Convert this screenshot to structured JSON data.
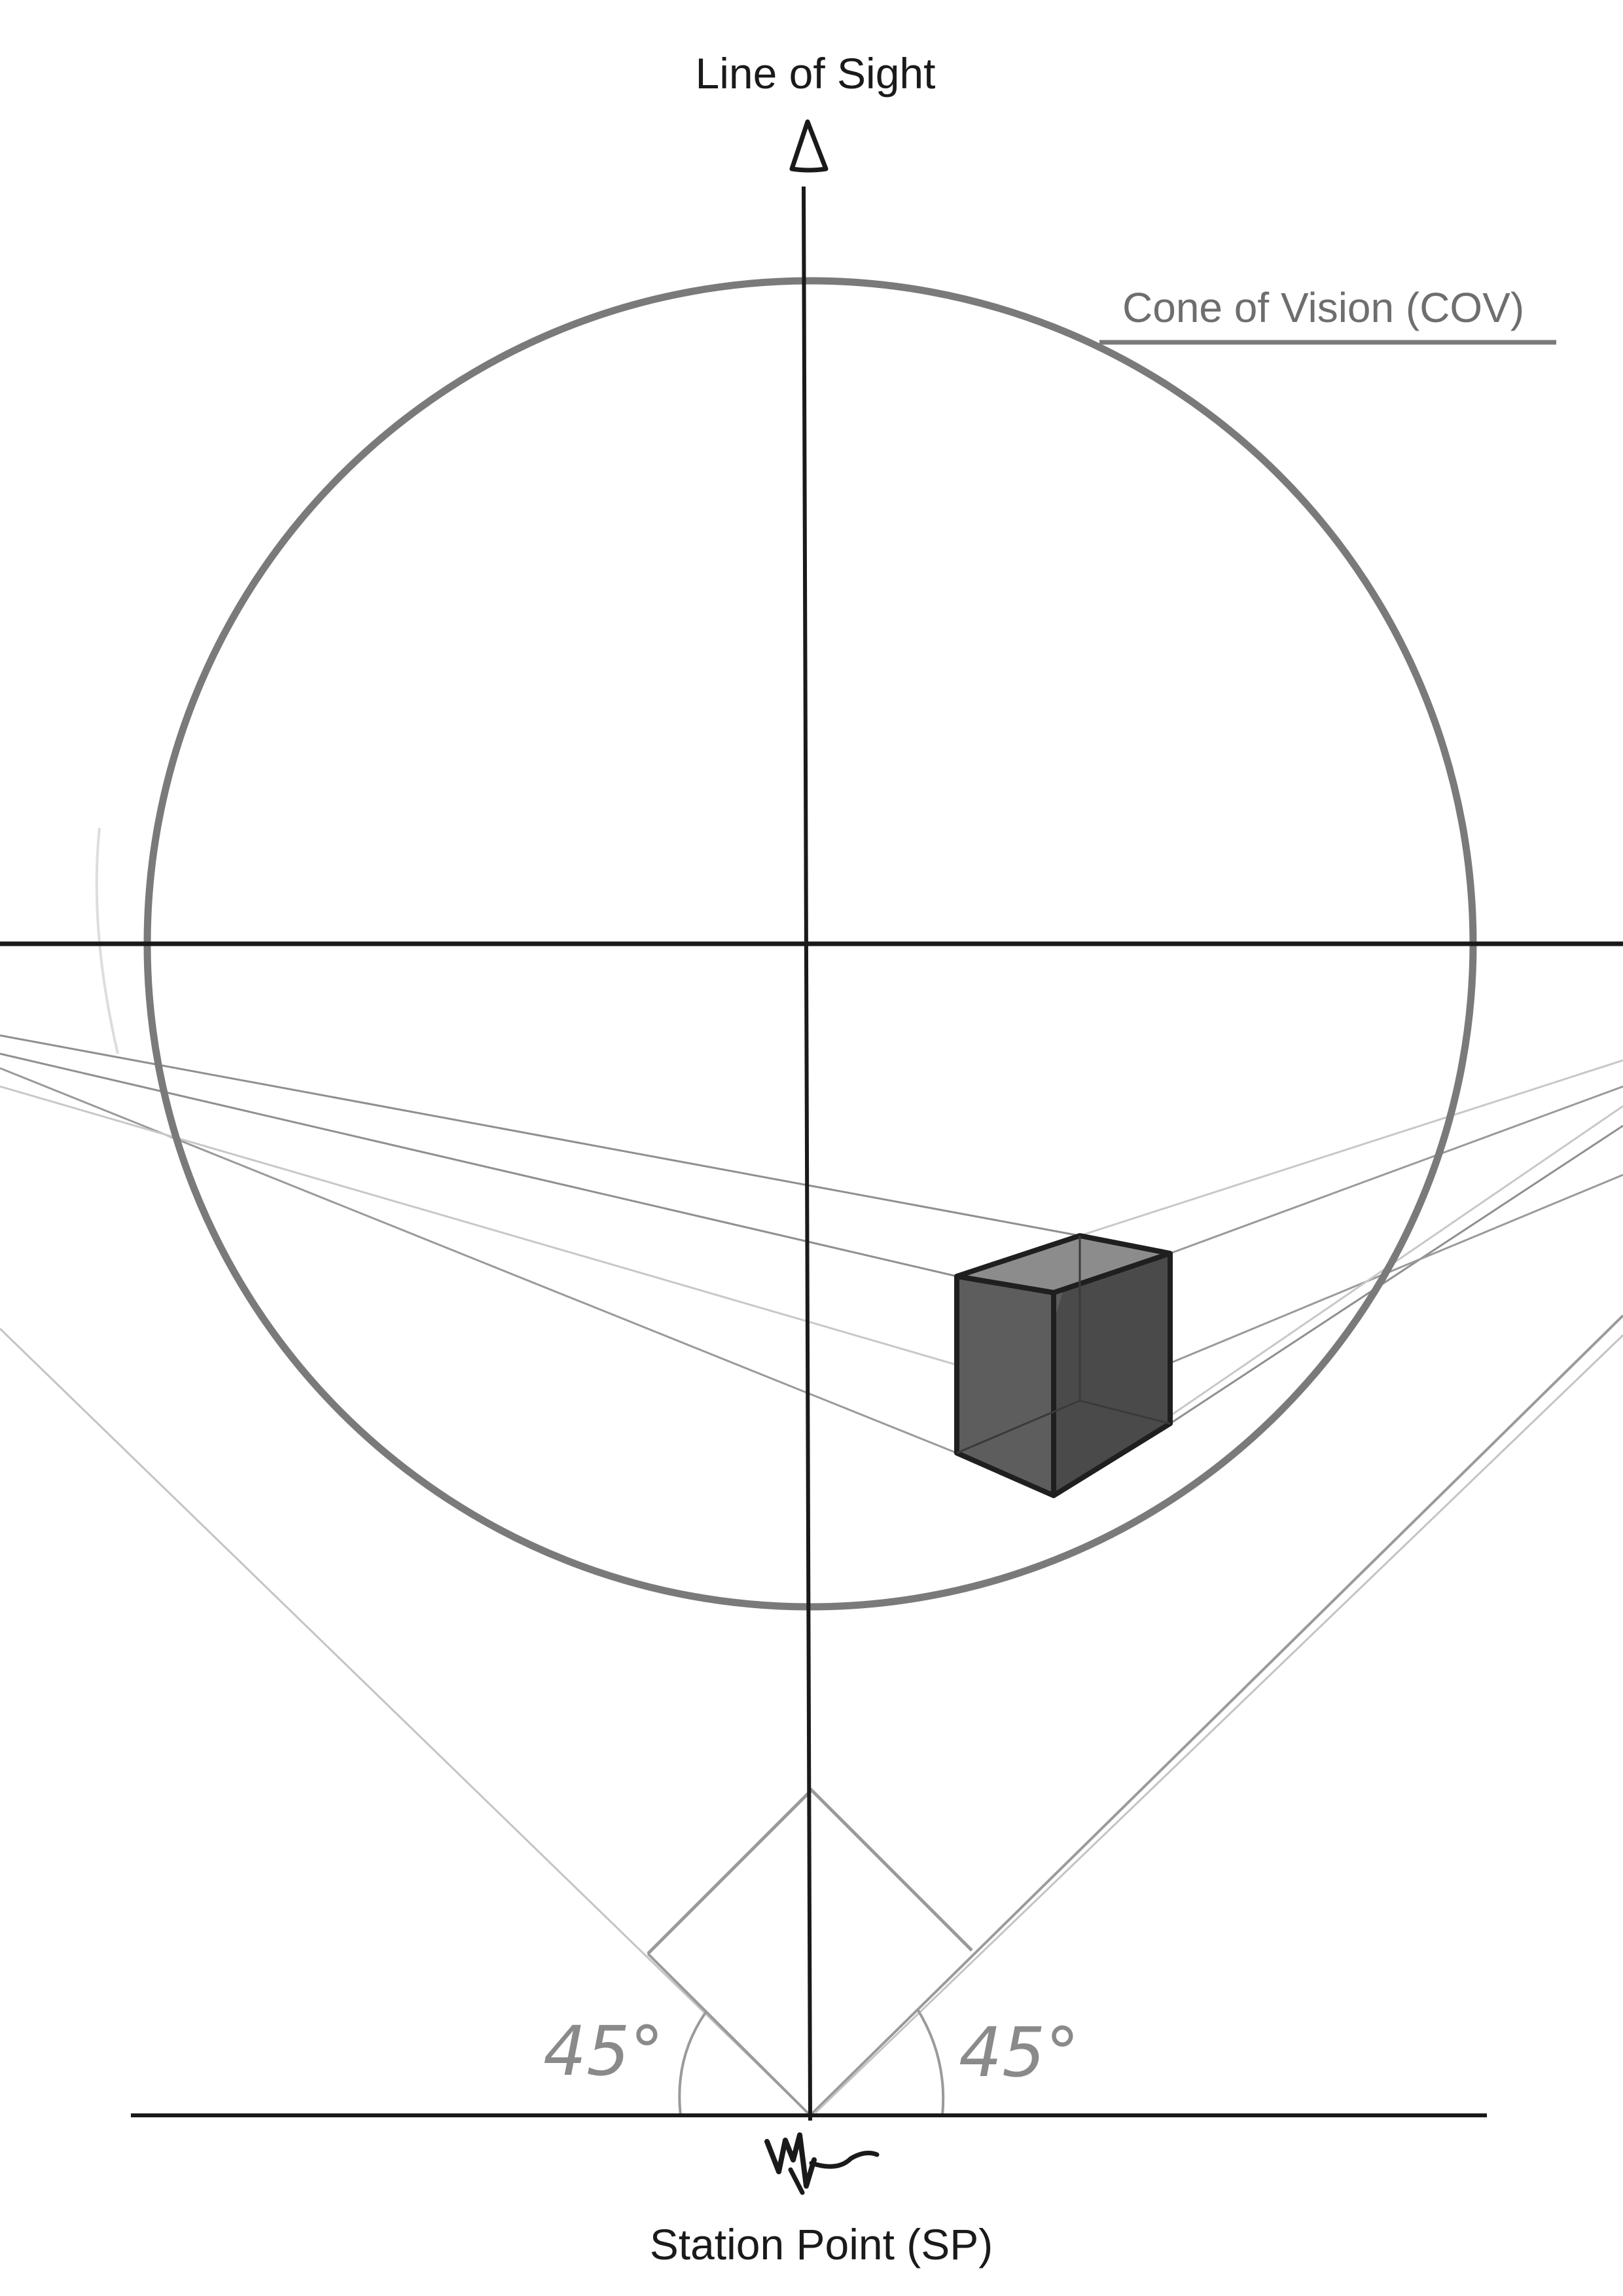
{
  "labels": {
    "line_of_sight": "Line of Sight",
    "cone_of_vision": "Cone of Vision (COV)",
    "station_point": "Station Point (SP)",
    "angle_left": "45°",
    "angle_right": "45°"
  },
  "colors": {
    "ink": "#1a1a1a",
    "circle": "#7a7a7a",
    "cone_label": "#6e6e6e",
    "guide": "#9a9a9a",
    "guide_light": "#c4c4c4",
    "angle_text": "#8a8a8a",
    "cube_front": "#5d5d5d",
    "cube_side": "#4a4a4a",
    "cube_top": "#8c8c8c"
  },
  "icons": {
    "eye": "eye-icon",
    "station_mark": "eye-glyph-mark"
  }
}
